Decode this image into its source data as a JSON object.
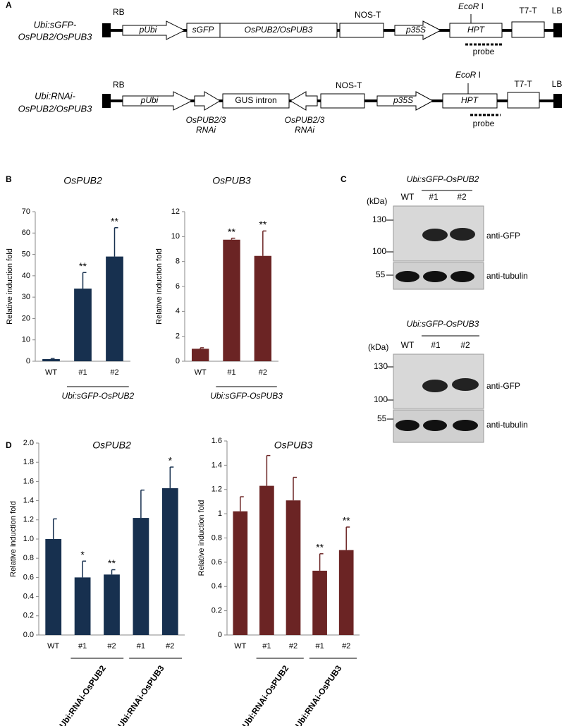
{
  "panel_labels": {
    "a": "A",
    "b": "B",
    "c": "C",
    "d": "D"
  },
  "constructs": [
    {
      "name_lines": [
        "Ubi:sGFP-",
        "OsPUB2/OsPUB3"
      ],
      "rb": "RB",
      "promoter": "pUbi",
      "tag": "sGFP",
      "gene": "OsPUB2/OsPUB3",
      "terminator": "NOS-T",
      "promoter2": "p35S",
      "site": {
        "italic": "EcoR",
        "rest": " I"
      },
      "marker": "HPT",
      "probe": "probe",
      "terminator2": "T7-T",
      "lb": "LB"
    },
    {
      "name_lines": [
        "Ubi:RNAi-",
        "OsPUB2/OsPUB3"
      ],
      "rb": "RB",
      "promoter": "pUbi",
      "rnai_lines": [
        "OsPUB2/3",
        "RNAi"
      ],
      "intron": "GUS intron",
      "rnai_reverse_lines": [
        "OsPUB2/3",
        "RNAi"
      ],
      "terminator": "NOS-T",
      "promoter2": "p35S",
      "site": {
        "italic": "EcoR",
        "rest": " I"
      },
      "marker": "HPT",
      "probe": "probe",
      "terminator2": "T7-T",
      "lb": "LB"
    }
  ],
  "blots": [
    {
      "title": "Ubi:sGFP-OsPUB2",
      "unit": "(kDa)",
      "lanes": [
        "WT",
        "#1",
        "#2"
      ],
      "markers": [
        "130",
        "100",
        "55"
      ],
      "antibodies": [
        "anti-GFP",
        "anti-tubulin"
      ]
    },
    {
      "title": "Ubi:sGFP-OsPUB3",
      "unit": "(kDa)",
      "lanes": [
        "WT",
        "#1",
        "#2"
      ],
      "markers": [
        "130",
        "100",
        "55"
      ],
      "antibodies": [
        "anti-GFP",
        "anti-tubulin"
      ]
    }
  ],
  "chart_data": [
    {
      "type": "bar",
      "title": "OsPUB2",
      "y_label": "Relative induction fold",
      "categories": [
        "WT",
        "#1",
        "#2"
      ],
      "values": [
        1,
        34,
        49
      ],
      "errors": [
        0.3,
        7.5,
        13.5
      ],
      "significance": [
        null,
        "**",
        "**"
      ],
      "group_label": "Ubi:sGFP-OsPUB2",
      "color": "#17304f",
      "ylim": [
        0,
        70
      ],
      "yticks": [
        0,
        10,
        20,
        30,
        40,
        50,
        60,
        70
      ]
    },
    {
      "type": "bar",
      "title": "OsPUB3",
      "y_label": "Relative induction fold",
      "categories": [
        "WT",
        "#1",
        "#2"
      ],
      "values": [
        1,
        9.75,
        8.45
      ],
      "errors": [
        0.08,
        0.12,
        2.0
      ],
      "significance": [
        null,
        "**",
        "**"
      ],
      "group_label": "Ubi:sGFP-OsPUB3",
      "color": "#6b2424",
      "ylim": [
        0,
        12
      ],
      "yticks": [
        0,
        2,
        4,
        6,
        8,
        10,
        12
      ]
    },
    {
      "type": "bar",
      "title": "OsPUB2",
      "y_label": "Relative induction fold",
      "categories": [
        "WT",
        "#1",
        "#2",
        "#1",
        "#2"
      ],
      "values": [
        1.0,
        0.6,
        0.63,
        1.22,
        1.53
      ],
      "errors": [
        0.21,
        0.17,
        0.05,
        0.29,
        0.22
      ],
      "significance": [
        null,
        "*",
        "**",
        null,
        "*"
      ],
      "groups": [
        "Ubi:RNAi-OsPUB2",
        "Ubi:RNAi-OsPUB3"
      ],
      "color": "#17304f",
      "ylim": [
        0,
        2
      ],
      "yticks": [
        {
          "value": 0,
          "label": "0.0"
        },
        0.2,
        0.4,
        0.6,
        0.8,
        {
          "value": 1,
          "label": "1.0"
        },
        1.2,
        1.4,
        1.6,
        1.8,
        {
          "value": 2,
          "label": "2.0"
        }
      ]
    },
    {
      "type": "bar",
      "title": "OsPUB3",
      "y_label": "Relative induction fold",
      "categories": [
        "WT",
        "#1",
        "#2",
        "#1",
        "#2"
      ],
      "values": [
        1.02,
        1.23,
        1.11,
        0.53,
        0.7
      ],
      "errors": [
        0.12,
        0.25,
        0.19,
        0.14,
        0.19
      ],
      "significance": [
        null,
        null,
        null,
        "**",
        "**"
      ],
      "groups": [
        "Ubi:RNAi-OsPUB2",
        "Ubi:RNAi-OsPUB3"
      ],
      "color": "#6b2424",
      "ylim": [
        0,
        1.6
      ],
      "yticks": [
        0,
        0.2,
        0.4,
        0.6,
        0.8,
        1,
        1.2,
        1.4,
        1.6
      ]
    }
  ]
}
